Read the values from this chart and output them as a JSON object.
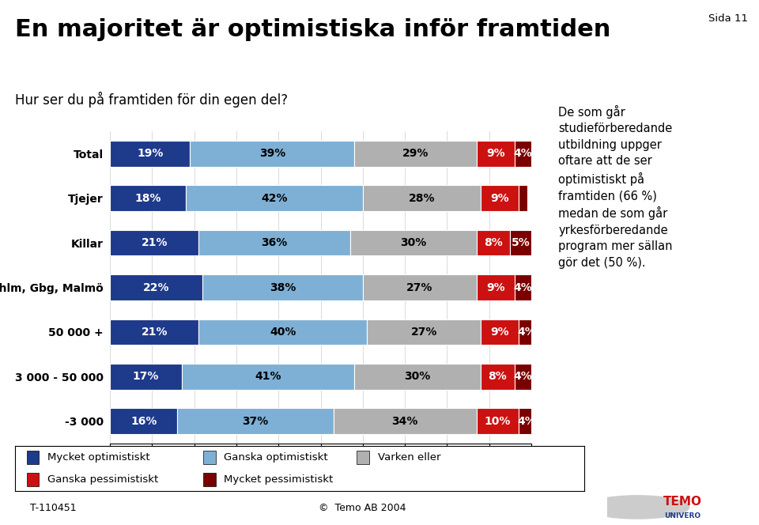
{
  "title": "En majoritet är optimistiska inför framtiden",
  "subtitle": "Hur ser du på framtiden för din egen del?",
  "page_label": "Sida 11",
  "footer_left": "T-110451",
  "footer_right": "©  Temo AB 2004",
  "categories": [
    "Total",
    "Tjejer",
    "Killar",
    "Sthlm, Gbg, Malmö",
    "50 000 +",
    "3 000 - 50 000",
    "-3 000"
  ],
  "series": [
    {
      "label": "Mycket optimistiskt",
      "color": "#1e3a8a",
      "values": [
        19,
        18,
        21,
        22,
        21,
        17,
        16
      ]
    },
    {
      "label": "Ganska optimistiskt",
      "color": "#7eb0d5",
      "values": [
        39,
        42,
        36,
        38,
        40,
        41,
        37
      ]
    },
    {
      "label": "Varken eller",
      "color": "#b0b0b0",
      "values": [
        29,
        28,
        30,
        27,
        27,
        30,
        34
      ]
    },
    {
      "label": "Ganska pessimistiskt",
      "color": "#cc1111",
      "values": [
        9,
        9,
        8,
        9,
        9,
        8,
        10
      ]
    },
    {
      "label": "Mycket pessimistiskt",
      "color": "#7a0000",
      "values": [
        4,
        2,
        5,
        4,
        4,
        4,
        4
      ]
    }
  ],
  "annotation_box_color": "#b8daea",
  "annotation_text": "De som går\nstudieförberedande\nutbildning uppger\noftare att de ser\noptimistiskt på\nframtiden (66 %)\nmedan de som går\nyrkesförberedande\nprogram mer sällan\ngör det (50 %).",
  "xlim": [
    0,
    100
  ],
  "xticks": [
    0,
    10,
    20,
    30,
    40,
    50,
    60,
    70,
    80,
    90,
    100
  ],
  "background_color": "#ffffff",
  "bar_height": 0.58,
  "title_fontsize": 22,
  "subtitle_fontsize": 12,
  "label_fontsize": 10,
  "tick_fontsize": 10,
  "line_color": "#4472c4"
}
